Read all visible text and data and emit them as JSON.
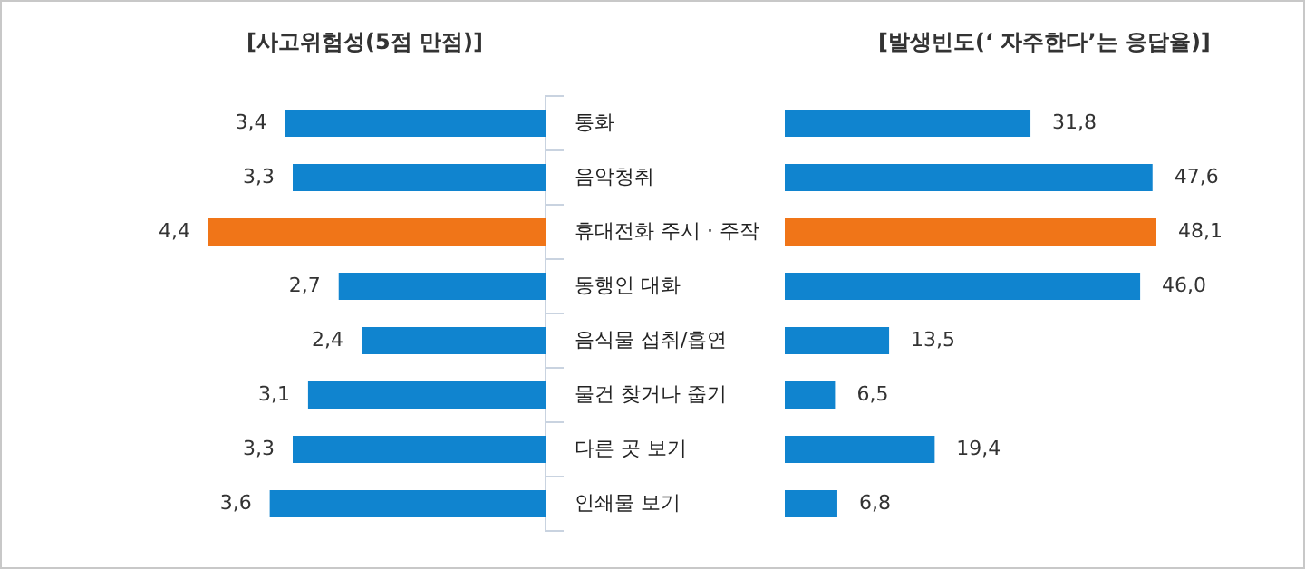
{
  "chart_data": [
    {
      "type": "bar",
      "orientation": "horizontal",
      "title": "[사고위험성(5점 만점)]",
      "categories": [
        "통화",
        "음악청취",
        "휴대전화 주시 · 주작",
        "동행인 대화",
        "음식물 섭취/흡연",
        "물건 찾거나 줍기",
        "다른 곳 보기",
        "인쇄물 보기"
      ],
      "values": [
        3.4,
        3.3,
        4.4,
        2.7,
        2.4,
        3.1,
        3.3,
        3.6
      ],
      "value_labels": [
        "3,4",
        "3,3",
        "4,4",
        "2,7",
        "2,4",
        "3,1",
        "3,3",
        "3,6"
      ],
      "colors": [
        "#1084cf",
        "#1084cf",
        "#f07518",
        "#1084cf",
        "#1084cf",
        "#1084cf",
        "#1084cf",
        "#1084cf"
      ],
      "tick_labels": "y"
    },
    {
      "type": "bar",
      "orientation": "horizontal",
      "title": "[발생빈도(‘ 자주한다’는 응답율)]",
      "categories": [
        null,
        null,
        null,
        null,
        null,
        null,
        null,
        null
      ],
      "values": [
        31.8,
        47.6,
        48.1,
        46.0,
        13.5,
        6.5,
        19.4,
        6.8
      ],
      "value_labels": [
        "31,8",
        "47,6",
        "48,1",
        "46,0",
        "13,5",
        "6,5",
        "19,4",
        "6,8"
      ],
      "colors": [
        "#1084cf",
        "#1084cf",
        "#f07518",
        "#1084cf",
        "#1084cf",
        "#1084cf",
        "#1084cf",
        "#1084cf"
      ],
      "tick_labels": false
    }
  ]
}
